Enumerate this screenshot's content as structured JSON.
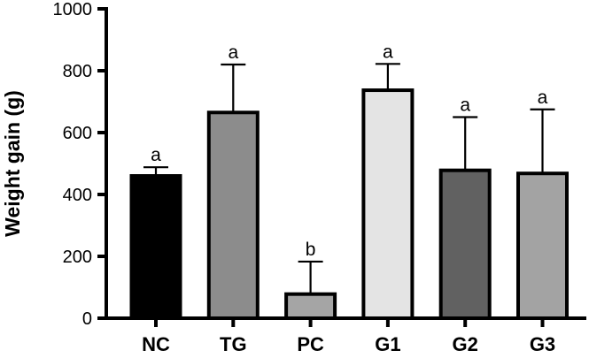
{
  "chart_data": {
    "type": "bar",
    "title": "",
    "xlabel": "",
    "ylabel": "Weight gain (g)",
    "ylim": [
      0,
      1000
    ],
    "yticks": [
      "0",
      "200",
      "400",
      "600",
      "800",
      "1000"
    ],
    "grid": false,
    "categories": [
      "NC",
      "TG",
      "PC",
      "G1",
      "G2",
      "G3"
    ],
    "values": [
      460,
      665,
      78,
      737,
      478,
      468
    ],
    "error_upper": [
      28,
      155,
      105,
      85,
      172,
      207
    ],
    "significance": [
      "a",
      "a",
      "b",
      "a",
      "a",
      "a"
    ],
    "bar_colors": [
      "#000000",
      "#8c8c8c",
      "#a5a5a5",
      "#e4e4e4",
      "#616161",
      "#a3a3a3"
    ]
  }
}
